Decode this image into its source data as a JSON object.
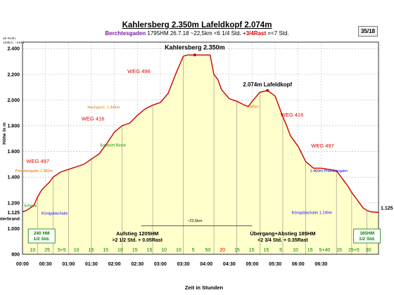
{
  "header": {
    "title": "Kahlersberg 2.350m Lafeldkopf 2.074m",
    "subtitle_start": "Berchtesgaden",
    "subtitle_stats": "1795HM 26.7.18 ~22,5km <6 1/4 Std. +",
    "subtitle_rest": "3/4Rast",
    "subtitle_end": " =<7 Std.",
    "page_badge": "35/18",
    "corner_note_1": "ab Reith:",
    "corner_note_2": "168km; ~2Std"
  },
  "colors": {
    "profile_fill": "#ffffcc",
    "profile_line": "#cc0000",
    "trail_red": "#e00000",
    "trail_green": "#008000",
    "trail_blue": "#0000ff",
    "grid": "#b0b0b0"
  },
  "chart_data": {
    "type": "area",
    "title": "Kahlersberg 2.350m",
    "xlabel": "Zeit in Stunden",
    "ylabel": "Höhe in m",
    "xlim": [
      0,
      465
    ],
    "ylim": [
      800,
      2450
    ],
    "x_ticks": [
      "00:00",
      "00:30",
      "01:00",
      "01:30",
      "02:00",
      "02:30",
      "03:00",
      "03:30",
      "04:00",
      "04:30",
      "05:00",
      "05:30",
      "06:00",
      "06:30"
    ],
    "y_ticks": [
      "800",
      "1.000",
      "1.200",
      "1.400",
      "1.600",
      "1.800",
      "2.000",
      "2.200",
      "2.400"
    ],
    "x": [
      0,
      5,
      10,
      15,
      20,
      25,
      30,
      35,
      40,
      45,
      50,
      55,
      60,
      65,
      70,
      80,
      90,
      100,
      110,
      120,
      130,
      140,
      150,
      160,
      170,
      180,
      190,
      200,
      210,
      215,
      230,
      245,
      250,
      255,
      260,
      270,
      280,
      290,
      295,
      300,
      310,
      320,
      330,
      335,
      340,
      345,
      350,
      360,
      370,
      380,
      390,
      400,
      410,
      415,
      420,
      425,
      430,
      435,
      440,
      445,
      450,
      455,
      465
    ],
    "series": [
      {
        "values": [
          1130,
          1140,
          1160,
          1180,
          1250,
          1300,
          1330,
          1360,
          1400,
          1420,
          1440,
          1450,
          1460,
          1470,
          1480,
          1500,
          1540,
          1580,
          1660,
          1750,
          1800,
          1820,
          1880,
          1930,
          1960,
          1980,
          2050,
          2200,
          2340,
          2350,
          2350,
          2350,
          2200,
          2160,
          2080,
          2010,
          1990,
          1960,
          1950,
          1990,
          2060,
          2074,
          2030,
          1950,
          1870,
          1800,
          1720,
          1640,
          1520,
          1470,
          1470,
          1460,
          1450,
          1410,
          1370,
          1330,
          1280,
          1240,
          1200,
          1160,
          1140,
          1130,
          1125
        ]
      }
    ],
    "y_marker_labels": [
      "1.125",
      "1.125"
    ],
    "left_edge_labels": [
      "Unterbrand",
      "Schorns"
    ],
    "peaks": [
      {
        "label": "Kahlersberg 2.350m",
        "x": 225,
        "y": 2350
      },
      {
        "label": "2.074m Lafeldkopf",
        "x": 320,
        "y": 2074
      }
    ],
    "weg_labels": [
      {
        "text": "WEG 496",
        "x": 152,
        "y": 2210
      },
      {
        "text": "WEG 416",
        "x": 92,
        "y": 1840
      },
      {
        "text": "WEG 497",
        "x": 20,
        "y": 1510
      },
      {
        "text": "WEG 416",
        "x": 352,
        "y": 1870
      },
      {
        "text": "WEG 497",
        "x": 392,
        "y": 1630
      }
    ],
    "place_labels": [
      {
        "text": "Hochgsch. 1.945m",
        "x": 106,
        "y": 1935,
        "color": "orange"
      },
      {
        "text": "Prielsbergalm 1.460m",
        "x": 15,
        "y": 1440,
        "color": "orange"
      },
      {
        "text": "Königsbachalm",
        "x": 42,
        "y": 1110,
        "color": "blue"
      },
      {
        "text": "Königsbachalm 1.190m",
        "x": 378,
        "y": 1115,
        "color": "blue"
      },
      {
        "text": "1.460m Prielsbergalm",
        "x": 400,
        "y": 1440,
        "color": "blue"
      },
      {
        "text": "1.945m",
        "x": 300,
        "y": 1940,
        "color": "orange"
      },
      {
        "text": "Schlecht Rinne",
        "x": 118,
        "y": 1640,
        "color": "green"
      },
      {
        "text": "~22,5km",
        "x": 225,
        "y": 1050,
        "color": "black"
      }
    ],
    "bottom_panel": {
      "left_box": [
        "240 HM",
        "1/2 Std."
      ],
      "right_box": [
        "165HM",
        "1/2 Std."
      ],
      "ascent_label": "Aufstieg 1205HM",
      "ascent_time": ">2 1/2 Std. + 0.05Rast",
      "mid_label": "Übergang+Abstieg 185HM",
      "mid_time": "<2 3/4 Std. + 0.35Rast",
      "segment_minutes": [
        "10",
        "25",
        "5+5",
        "10",
        "15",
        "15",
        "10",
        "15",
        "15",
        "10",
        "10",
        "5",
        "50",
        "20",
        "15",
        "15",
        "15",
        "5",
        "10",
        "15",
        "5+40",
        "15",
        "25+5",
        "30"
      ],
      "segment_colors": [
        "green",
        "green",
        "green",
        "green",
        "green",
        "green",
        "green",
        "green",
        "green",
        "green",
        "green",
        "green",
        "green",
        "red",
        "green",
        "green",
        "green",
        "green",
        "green",
        "green",
        "green",
        "green",
        "green",
        "green"
      ]
    }
  }
}
